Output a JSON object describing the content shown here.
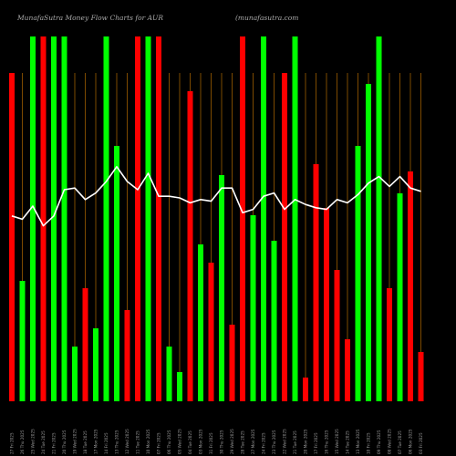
{
  "chart_data": {
    "type": "bar",
    "title": "MunafaSutra Money Flow Charts for AUR",
    "watermark": "(munafasutra.com",
    "ylim": [
      0,
      100
    ],
    "colors": {
      "background": "#000000",
      "up": "#00ff00",
      "down": "#ff0000",
      "gridline": "#b36b00",
      "line": "#ffffff",
      "text": "#9a9a9a"
    },
    "categories": [
      "27 Fri 2025",
      "26 Thu 2025",
      "25 Wed 2025",
      "24 Tue 2025",
      "21 Fri 2025",
      "20 Thu 2025",
      "19 Wed 2025",
      "18 Tue 2025",
      "17 Mon 2025",
      "14 Fri 2025",
      "13 Thu 2025",
      "12 Wed 2025",
      "11 Tue 2025",
      "10 Mon 2025",
      "07 Fri 2025",
      "06 Thu 2025",
      "05 Wed 2025",
      "04 Tue 2025",
      "03 Mon 2025",
      "31 Fri 2025",
      "30 Thu 2025",
      "29 Wed 2025",
      "28 Tue 2025",
      "27 Mon 2025",
      "24 Fri 2025",
      "23 Thu 2025",
      "22 Wed 2025",
      "21 Tue 2025",
      "20 Mon 2025",
      "17 Fri 2025",
      "16 Thu 2025",
      "15 Wed 2025",
      "14 Tue 2025",
      "13 Mon 2025",
      "10 Fri 2025",
      "09 Thu 2025",
      "08 Wed 2025",
      "07 Tue 2025",
      "06 Mon 2025",
      "03 Fri 2025"
    ],
    "bars": [
      {
        "value": 90,
        "color": "red"
      },
      {
        "value": 33,
        "color": "green"
      },
      {
        "value": 100,
        "color": "green"
      },
      {
        "value": 100,
        "color": "red"
      },
      {
        "value": 100,
        "color": "green"
      },
      {
        "value": 100,
        "color": "green"
      },
      {
        "value": 15,
        "color": "green"
      },
      {
        "value": 31,
        "color": "red"
      },
      {
        "value": 20,
        "color": "green"
      },
      {
        "value": 100,
        "color": "green"
      },
      {
        "value": 70,
        "color": "green"
      },
      {
        "value": 25,
        "color": "red"
      },
      {
        "value": 100,
        "color": "red"
      },
      {
        "value": 100,
        "color": "green"
      },
      {
        "value": 100,
        "color": "red"
      },
      {
        "value": 15,
        "color": "green"
      },
      {
        "value": 8,
        "color": "green"
      },
      {
        "value": 85,
        "color": "red"
      },
      {
        "value": 43,
        "color": "green"
      },
      {
        "value": 38,
        "color": "red"
      },
      {
        "value": 62,
        "color": "green"
      },
      {
        "value": 21,
        "color": "red"
      },
      {
        "value": 100,
        "color": "red"
      },
      {
        "value": 51,
        "color": "green"
      },
      {
        "value": 100,
        "color": "green"
      },
      {
        "value": 44,
        "color": "green"
      },
      {
        "value": 90,
        "color": "red"
      },
      {
        "value": 100,
        "color": "green"
      },
      {
        "value": 6.5,
        "color": "red"
      },
      {
        "value": 65,
        "color": "red"
      },
      {
        "value": 53,
        "color": "red"
      },
      {
        "value": 36,
        "color": "red"
      },
      {
        "value": 17,
        "color": "red"
      },
      {
        "value": 70,
        "color": "green"
      },
      {
        "value": 87,
        "color": "green"
      },
      {
        "value": 100,
        "color": "green"
      },
      {
        "value": 31,
        "color": "red"
      },
      {
        "value": 57,
        "color": "green"
      },
      {
        "value": 63,
        "color": "red"
      },
      {
        "value": 13.5,
        "color": "red"
      }
    ],
    "money_flow_line": [
      62,
      61,
      65,
      59,
      62,
      70,
      70.5,
      67,
      69,
      72.5,
      77,
      72.5,
      70,
      75,
      68,
      68,
      67.5,
      66,
      67,
      66.5,
      70.5,
      70.5,
      63,
      64,
      68,
      69,
      64,
      67,
      65.5,
      64.5,
      64,
      67,
      66,
      68.5,
      72,
      74,
      71,
      74,
      70.5,
      69.5
    ]
  }
}
